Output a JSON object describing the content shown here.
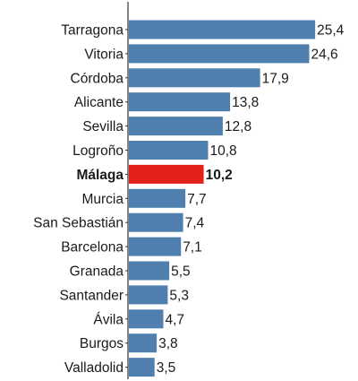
{
  "chart_data": {
    "type": "bar",
    "orientation": "horizontal",
    "categories": [
      "Tarragona",
      "Vitoria",
      "Córdoba",
      "Alicante",
      "Sevilla",
      "Logroño",
      "Málaga",
      "Murcia",
      "San Sebastián",
      "Barcelona",
      "Granada",
      "Santander",
      "Ávila",
      "Burgos",
      "Valladolid"
    ],
    "values": [
      25.4,
      24.6,
      17.9,
      13.8,
      12.8,
      10.8,
      10.2,
      7.7,
      7.4,
      7.1,
      5.5,
      5.3,
      4.7,
      3.8,
      3.5
    ],
    "value_labels": [
      "25,4",
      "24,6",
      "17,9",
      "13,8",
      "12,8",
      "10,8",
      "10,2",
      "7,7",
      "7,4",
      "7,1",
      "5,5",
      "5,3",
      "4,7",
      "3,8",
      "3,5"
    ],
    "highlight": "Málaga",
    "colors": {
      "bar": "#4f7fae",
      "highlight": "#e3231b",
      "axis": "#333333"
    },
    "xlim": [
      0,
      26
    ],
    "title": "",
    "xlabel": "",
    "ylabel": "",
    "grid": false,
    "legend": "none"
  }
}
